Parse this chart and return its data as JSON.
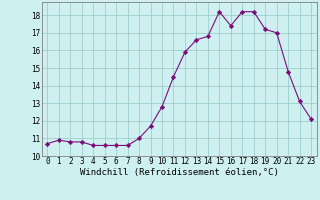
{
  "x": [
    0,
    1,
    2,
    3,
    4,
    5,
    6,
    7,
    8,
    9,
    10,
    11,
    12,
    13,
    14,
    15,
    16,
    17,
    18,
    19,
    20,
    21,
    22,
    23
  ],
  "y": [
    10.7,
    10.9,
    10.8,
    10.8,
    10.6,
    10.6,
    10.6,
    10.6,
    11.0,
    11.7,
    12.8,
    14.5,
    15.9,
    16.6,
    16.8,
    18.2,
    17.4,
    18.2,
    18.2,
    17.2,
    17.0,
    14.8,
    13.1,
    12.1
  ],
  "xlabel": "Windchill (Refroidissement éolien,°C)",
  "xlim": [
    -0.5,
    23.5
  ],
  "ylim": [
    10.0,
    18.75
  ],
  "yticks": [
    10,
    11,
    12,
    13,
    14,
    15,
    16,
    17,
    18
  ],
  "xticks": [
    0,
    1,
    2,
    3,
    4,
    5,
    6,
    7,
    8,
    9,
    10,
    11,
    12,
    13,
    14,
    15,
    16,
    17,
    18,
    19,
    20,
    21,
    22,
    23
  ],
  "line_color": "#7b0d7b",
  "marker": "D",
  "marker_size": 2.2,
  "bg_color": "#cef0f0",
  "grid_color": "#9ecece",
  "xlabel_fontsize": 6.5,
  "tick_fontsize": 5.5
}
